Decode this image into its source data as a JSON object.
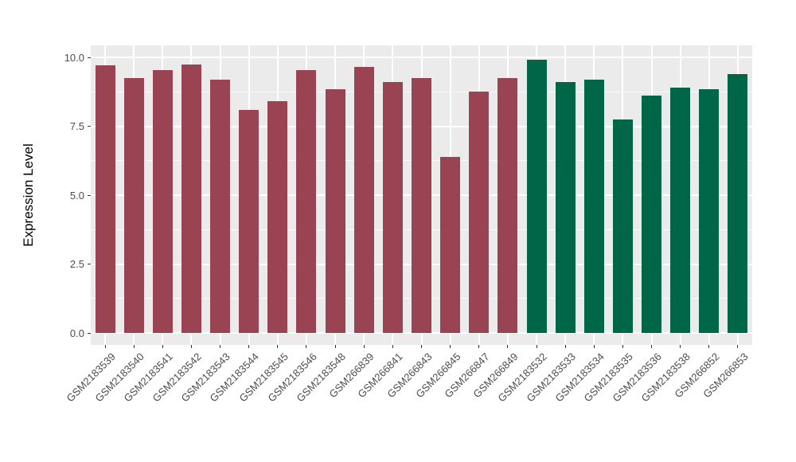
{
  "chart_data": {
    "type": "bar",
    "title": "",
    "xlabel": "",
    "ylabel": "Expression Level",
    "ylim": [
      0,
      10
    ],
    "ytick_labels": [
      "0.0",
      "2.5",
      "5.0",
      "7.5",
      "10.0"
    ],
    "ytick_values": [
      0,
      2.5,
      5,
      7.5,
      10
    ],
    "minor_ytick_values": [
      1.25,
      3.75,
      6.25,
      8.75
    ],
    "grid": "major and minor horizontal, major vertical per category, white on gray panel",
    "legend_position": "none",
    "panel_background": "#EBEBEB",
    "gridline_color": "#FFFFFF",
    "axis_text_color": "#4D4D4D",
    "categories": [
      "GSM2183539",
      "GSM2183540",
      "GSM2183541",
      "GSM2183542",
      "GSM2183543",
      "GSM2183544",
      "GSM2183545",
      "GSM2183546",
      "GSM2183548",
      "GSM266839",
      "GSM266841",
      "GSM266843",
      "GSM266845",
      "GSM266847",
      "GSM266849",
      "GSM2183532",
      "GSM2183533",
      "GSM2183534",
      "GSM2183535",
      "GSM2183536",
      "GSM2183538",
      "GSM266852",
      "GSM266853"
    ],
    "values": [
      9.7,
      9.25,
      9.55,
      9.75,
      9.2,
      8.1,
      8.4,
      9.55,
      8.85,
      9.65,
      9.1,
      9.25,
      6.4,
      8.75,
      9.25,
      9.9,
      9.1,
      9.2,
      7.75,
      8.6,
      8.9,
      8.85,
      9.4
    ],
    "bar_groups": [
      "maroon",
      "maroon",
      "maroon",
      "maroon",
      "maroon",
      "maroon",
      "maroon",
      "maroon",
      "maroon",
      "maroon",
      "maroon",
      "maroon",
      "maroon",
      "maroon",
      "maroon",
      "green",
      "green",
      "green",
      "green",
      "green",
      "green",
      "green",
      "green"
    ],
    "group_colors": {
      "maroon": "#9A4352",
      "green": "#006648"
    }
  }
}
